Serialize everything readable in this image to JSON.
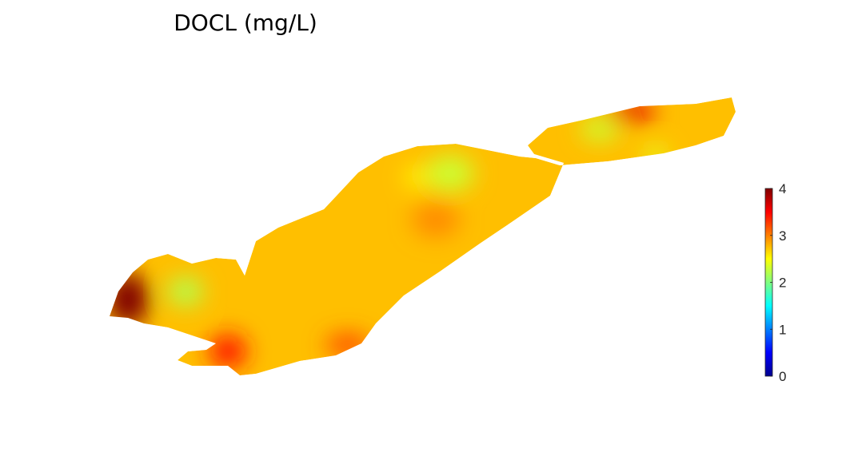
{
  "chart_data": {
    "type": "heatmap",
    "title": "DOCL (mg/L)",
    "xlabel": "",
    "ylabel": "",
    "colormap": "jet",
    "clim": [
      0,
      4
    ],
    "colorbar": {
      "placement": "right",
      "ticks": [
        0,
        1,
        2,
        3,
        4
      ],
      "tick_labels": [
        "0",
        "1",
        "2",
        "3",
        "4"
      ]
    },
    "background_value": 2.75,
    "regions": [
      {
        "name": "west-basin-edge",
        "value": 4.0
      },
      {
        "name": "west-basin-interior",
        "value": 2.2
      },
      {
        "name": "western-south-shore",
        "value": 3.4
      },
      {
        "name": "central-south-shore",
        "value": 3.2
      },
      {
        "name": "central-north",
        "value": 2.3
      },
      {
        "name": "central-north-east",
        "value": 2.5
      },
      {
        "name": "central-mid",
        "value": 2.95
      },
      {
        "name": "east-north-shore",
        "value": 3.6
      },
      {
        "name": "east-north-interior",
        "value": 2.3
      },
      {
        "name": "east-central",
        "value": 2.4
      },
      {
        "name": "east-south",
        "value": 3.1
      }
    ]
  }
}
